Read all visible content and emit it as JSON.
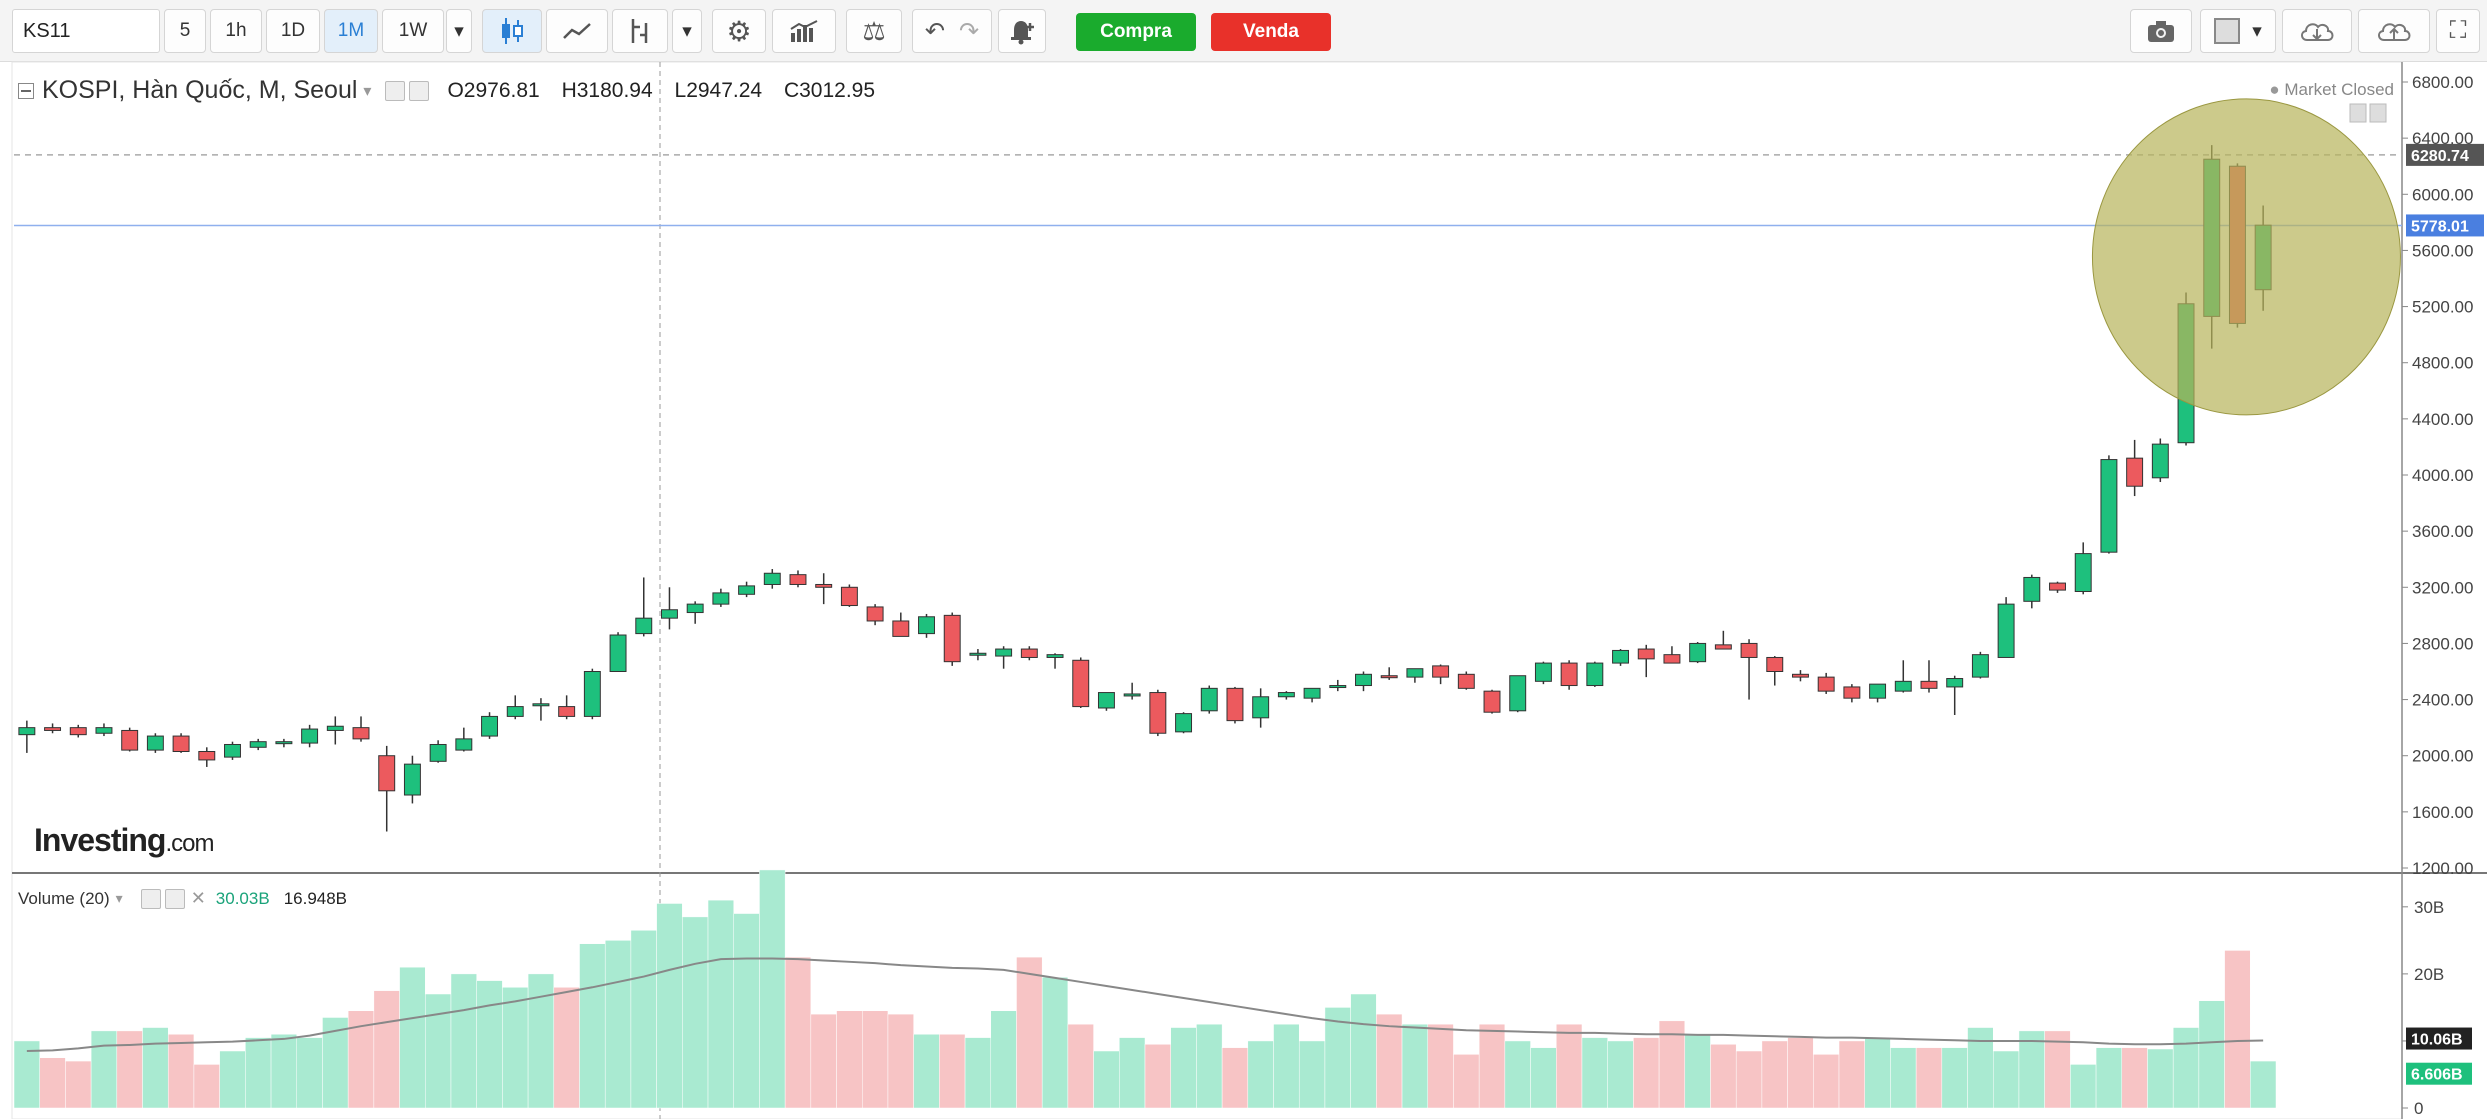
{
  "toolbar": {
    "symbol": "KS11",
    "intervals": [
      "5",
      "1h",
      "1D",
      "1M",
      "1W"
    ],
    "active_interval": "1M",
    "buy_label": "Compra",
    "sell_label": "Venda",
    "icons": [
      "candles-icon",
      "line-chart-icon",
      "indicator-icon",
      "settings-icon",
      "bars-icon",
      "scale-icon",
      "undo-icon",
      "redo-icon",
      "alert-icon",
      "camera-icon",
      "layout-icon",
      "cloud-download-icon",
      "cloud-upload-icon",
      "fullscreen-icon"
    ]
  },
  "legend": {
    "name": "KOSPI, Hàn Quốc, M, Seoul",
    "open_label": "O",
    "open": "2976.81",
    "high_label": "H",
    "high": "3180.94",
    "low_label": "L",
    "low": "2947.24",
    "close_label": "C",
    "close": "3012.95",
    "market_status": "Market Closed"
  },
  "volume_legend": {
    "name": "Volume (20)",
    "value1": "30.03B",
    "value2": "16.948B"
  },
  "logo": {
    "main": "Investing",
    "suffix": ".com"
  },
  "colors": {
    "up": "#1ec07d",
    "down": "#ec5a5e",
    "vol_up": "#a9ead1",
    "vol_down": "#f7c4c5",
    "highlight": "#b7b45a"
  },
  "chart_data": [
    {
      "type": "candlestick",
      "title": "KOSPI, Hàn Quốc, M, Seoul",
      "ylim": [
        1200,
        6800
      ],
      "y_ticks": [
        "6800.00",
        "6400.00",
        "6000.00",
        "5600.00",
        "5200.00",
        "4800.00",
        "4400.00",
        "4000.00",
        "3600.00",
        "3200.00",
        "2800.00",
        "2400.00",
        "2000.00",
        "1600.00",
        "1200.00"
      ],
      "price_labels": [
        {
          "text": "6280.74",
          "value": 6280.74,
          "color": "#555555"
        },
        {
          "text": "5778.01",
          "value": 5778.01,
          "color": "#4a7fe0"
        }
      ],
      "candles": [
        {
          "o": 2150,
          "h": 2250,
          "l": 2020,
          "c": 2200
        },
        {
          "o": 2200,
          "h": 2230,
          "l": 2160,
          "c": 2180
        },
        {
          "o": 2200,
          "h": 2220,
          "l": 2130,
          "c": 2150
        },
        {
          "o": 2160,
          "h": 2230,
          "l": 2140,
          "c": 2200
        },
        {
          "o": 2180,
          "h": 2200,
          "l": 2030,
          "c": 2040
        },
        {
          "o": 2040,
          "h": 2160,
          "l": 2020,
          "c": 2140
        },
        {
          "o": 2140,
          "h": 2160,
          "l": 2020,
          "c": 2030
        },
        {
          "o": 2030,
          "h": 2060,
          "l": 1920,
          "c": 1970
        },
        {
          "o": 1990,
          "h": 2100,
          "l": 1970,
          "c": 2080
        },
        {
          "o": 2060,
          "h": 2120,
          "l": 2040,
          "c": 2100
        },
        {
          "o": 2090,
          "h": 2120,
          "l": 2060,
          "c": 2100
        },
        {
          "o": 2090,
          "h": 2220,
          "l": 2060,
          "c": 2190
        },
        {
          "o": 2180,
          "h": 2280,
          "l": 2080,
          "c": 2210
        },
        {
          "o": 2200,
          "h": 2280,
          "l": 2100,
          "c": 2120
        },
        {
          "o": 2000,
          "h": 2070,
          "l": 1460,
          "c": 1750
        },
        {
          "o": 1720,
          "h": 2000,
          "l": 1660,
          "c": 1940
        },
        {
          "o": 1960,
          "h": 2110,
          "l": 1950,
          "c": 2080
        },
        {
          "o": 2040,
          "h": 2200,
          "l": 2030,
          "c": 2120
        },
        {
          "o": 2140,
          "h": 2310,
          "l": 2120,
          "c": 2280
        },
        {
          "o": 2280,
          "h": 2430,
          "l": 2260,
          "c": 2350
        },
        {
          "o": 2360,
          "h": 2410,
          "l": 2250,
          "c": 2370
        },
        {
          "o": 2350,
          "h": 2430,
          "l": 2260,
          "c": 2280
        },
        {
          "o": 2280,
          "h": 2620,
          "l": 2260,
          "c": 2600
        },
        {
          "o": 2600,
          "h": 2880,
          "l": 2600,
          "c": 2860
        },
        {
          "o": 2870,
          "h": 3270,
          "l": 2850,
          "c": 2980
        },
        {
          "o": 2980,
          "h": 3200,
          "l": 2900,
          "c": 3040
        },
        {
          "o": 3020,
          "h": 3100,
          "l": 2940,
          "c": 3080
        },
        {
          "o": 3080,
          "h": 3190,
          "l": 3060,
          "c": 3160
        },
        {
          "o": 3150,
          "h": 3240,
          "l": 3130,
          "c": 3210
        },
        {
          "o": 3220,
          "h": 3330,
          "l": 3190,
          "c": 3300
        },
        {
          "o": 3290,
          "h": 3320,
          "l": 3200,
          "c": 3220
        },
        {
          "o": 3220,
          "h": 3300,
          "l": 3080,
          "c": 3200
        },
        {
          "o": 3200,
          "h": 3220,
          "l": 3060,
          "c": 3070
        },
        {
          "o": 3060,
          "h": 3080,
          "l": 2930,
          "c": 2960
        },
        {
          "o": 2960,
          "h": 3020,
          "l": 2850,
          "c": 2850
        },
        {
          "o": 2870,
          "h": 3010,
          "l": 2840,
          "c": 2990
        },
        {
          "o": 3000,
          "h": 3020,
          "l": 2640,
          "c": 2670
        },
        {
          "o": 2720,
          "h": 2760,
          "l": 2680,
          "c": 2730
        },
        {
          "o": 2710,
          "h": 2780,
          "l": 2620,
          "c": 2760
        },
        {
          "o": 2760,
          "h": 2780,
          "l": 2680,
          "c": 2700
        },
        {
          "o": 2700,
          "h": 2730,
          "l": 2620,
          "c": 2720
        },
        {
          "o": 2680,
          "h": 2700,
          "l": 2340,
          "c": 2350
        },
        {
          "o": 2340,
          "h": 2450,
          "l": 2320,
          "c": 2450
        },
        {
          "o": 2440,
          "h": 2520,
          "l": 2400,
          "c": 2440
        },
        {
          "o": 2450,
          "h": 2470,
          "l": 2140,
          "c": 2160
        },
        {
          "o": 2170,
          "h": 2310,
          "l": 2160,
          "c": 2300
        },
        {
          "o": 2320,
          "h": 2500,
          "l": 2300,
          "c": 2480
        },
        {
          "o": 2480,
          "h": 2490,
          "l": 2230,
          "c": 2250
        },
        {
          "o": 2270,
          "h": 2480,
          "l": 2200,
          "c": 2420
        },
        {
          "o": 2420,
          "h": 2460,
          "l": 2400,
          "c": 2450
        },
        {
          "o": 2410,
          "h": 2480,
          "l": 2380,
          "c": 2480
        },
        {
          "o": 2490,
          "h": 2540,
          "l": 2460,
          "c": 2500
        },
        {
          "o": 2500,
          "h": 2600,
          "l": 2460,
          "c": 2580
        },
        {
          "o": 2570,
          "h": 2630,
          "l": 2540,
          "c": 2560
        },
        {
          "o": 2560,
          "h": 2620,
          "l": 2520,
          "c": 2620
        },
        {
          "o": 2640,
          "h": 2650,
          "l": 2510,
          "c": 2560
        },
        {
          "o": 2580,
          "h": 2600,
          "l": 2470,
          "c": 2480
        },
        {
          "o": 2460,
          "h": 2470,
          "l": 2300,
          "c": 2310
        },
        {
          "o": 2320,
          "h": 2570,
          "l": 2310,
          "c": 2570
        },
        {
          "o": 2530,
          "h": 2670,
          "l": 2510,
          "c": 2660
        },
        {
          "o": 2660,
          "h": 2680,
          "l": 2470,
          "c": 2500
        },
        {
          "o": 2500,
          "h": 2670,
          "l": 2490,
          "c": 2660
        },
        {
          "o": 2660,
          "h": 2760,
          "l": 2640,
          "c": 2750
        },
        {
          "o": 2760,
          "h": 2790,
          "l": 2560,
          "c": 2690
        },
        {
          "o": 2720,
          "h": 2780,
          "l": 2660,
          "c": 2660
        },
        {
          "o": 2670,
          "h": 2810,
          "l": 2660,
          "c": 2800
        },
        {
          "o": 2790,
          "h": 2890,
          "l": 2760,
          "c": 2760
        },
        {
          "o": 2800,
          "h": 2830,
          "l": 2400,
          "c": 2700
        },
        {
          "o": 2700,
          "h": 2710,
          "l": 2500,
          "c": 2600
        },
        {
          "o": 2580,
          "h": 2610,
          "l": 2530,
          "c": 2560
        },
        {
          "o": 2560,
          "h": 2590,
          "l": 2440,
          "c": 2460
        },
        {
          "o": 2490,
          "h": 2510,
          "l": 2380,
          "c": 2410
        },
        {
          "o": 2410,
          "h": 2510,
          "l": 2380,
          "c": 2510
        },
        {
          "o": 2460,
          "h": 2680,
          "l": 2450,
          "c": 2530
        },
        {
          "o": 2530,
          "h": 2680,
          "l": 2450,
          "c": 2480
        },
        {
          "o": 2490,
          "h": 2570,
          "l": 2290,
          "c": 2550
        },
        {
          "o": 2560,
          "h": 2740,
          "l": 2550,
          "c": 2720
        },
        {
          "o": 2700,
          "h": 3130,
          "l": 2700,
          "c": 3080
        },
        {
          "o": 3100,
          "h": 3290,
          "l": 3050,
          "c": 3270
        },
        {
          "o": 3230,
          "h": 3240,
          "l": 3160,
          "c": 3180
        },
        {
          "o": 3170,
          "h": 3520,
          "l": 3150,
          "c": 3440
        },
        {
          "o": 3450,
          "h": 4140,
          "l": 3440,
          "c": 4110
        },
        {
          "o": 4120,
          "h": 4250,
          "l": 3850,
          "c": 3920
        },
        {
          "o": 3980,
          "h": 4260,
          "l": 3950,
          "c": 4220
        },
        {
          "o": 4230,
          "h": 5300,
          "l": 4210,
          "c": 5220
        },
        {
          "o": 5130,
          "h": 6350,
          "l": 4900,
          "c": 6250
        },
        {
          "o": 6200,
          "h": 6220,
          "l": 5050,
          "c": 5080
        },
        {
          "o": 5320,
          "h": 5920,
          "l": 5170,
          "c": 5780
        }
      ]
    },
    {
      "type": "bar",
      "title": "Volume (20)",
      "ylim": [
        0,
        34
      ],
      "y_ticks": [
        "30B",
        "20B",
        "10B",
        "0"
      ],
      "value_labels": [
        {
          "text": "10.06B",
          "value": 10.06,
          "color": "#222222"
        },
        {
          "text": "6.606B",
          "value": 6.606,
          "color": "#1ec07d"
        }
      ],
      "values": [
        10,
        7.5,
        7,
        11.5,
        11.5,
        12,
        11,
        6.5,
        8.5,
        10.5,
        11,
        10.5,
        13.5,
        14.5,
        17.5,
        21,
        17,
        20,
        19,
        18,
        20,
        18,
        24.5,
        25,
        26.5,
        30.5,
        28.5,
        31,
        29,
        35.5,
        22.5,
        14,
        14.5,
        14.5,
        14,
        11,
        11,
        10.5,
        14.5,
        22.5,
        19.5,
        12.5,
        8.5,
        10.5,
        9.5,
        12,
        12.5,
        9,
        10,
        12.5,
        10,
        15,
        17,
        14,
        12.5,
        12.5,
        8,
        12.5,
        10,
        9,
        12.5,
        10.5,
        10,
        10.5,
        13,
        11,
        9.5,
        8.5,
        10,
        10.5,
        8,
        10,
        10.5,
        9,
        9,
        9,
        12,
        8.5,
        11.5,
        11.5,
        6.5,
        9,
        9,
        8.8,
        12,
        16,
        23.5,
        7
      ],
      "ma": [
        8.5,
        8.6,
        8.9,
        9.3,
        9.4,
        9.6,
        9.7,
        9.8,
        9.9,
        10.1,
        10.3,
        10.8,
        11.5,
        12.2,
        12.8,
        13.4,
        14.0,
        14.6,
        15.3,
        15.9,
        16.6,
        17.3,
        18.0,
        18.8,
        19.6,
        20.6,
        21.5,
        22.2,
        22.3,
        22.3,
        22.2,
        22.0,
        21.8,
        21.6,
        21.3,
        21.1,
        20.9,
        20.8,
        20.6,
        20.0,
        19.4,
        18.8,
        18.2,
        17.6,
        17.0,
        16.4,
        15.8,
        15.2,
        14.6,
        14.0,
        13.4,
        12.9,
        12.5,
        12.2,
        12.0,
        11.8,
        11.6,
        11.5,
        11.4,
        11.3,
        11.2,
        11.2,
        11.1,
        11.0,
        11.0,
        10.9,
        10.9,
        10.8,
        10.7,
        10.6,
        10.5,
        10.5,
        10.4,
        10.3,
        10.2,
        10.1,
        10.0,
        10.0,
        10.0,
        9.9,
        9.8,
        9.6,
        9.5,
        9.5,
        9.6,
        9.8,
        10.0,
        10.06
      ]
    }
  ]
}
